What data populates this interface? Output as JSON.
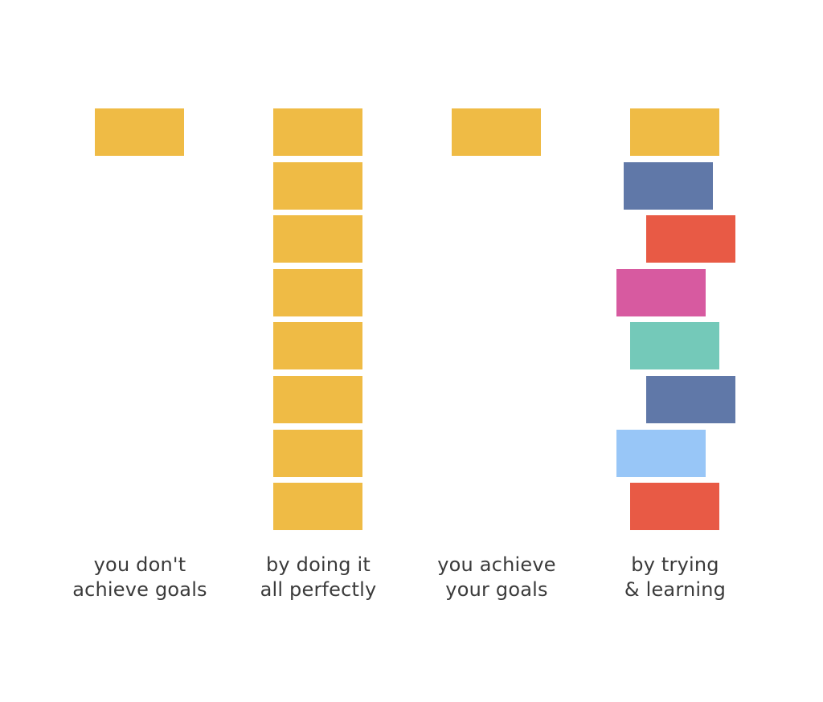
{
  "palette": {
    "yellow": "#efbb45",
    "slate_blue": "#6078a8",
    "red": "#e85a45",
    "magenta": "#d75aa0",
    "teal": "#74c9b9",
    "light_blue": "#98c6f7",
    "caption_text": "#3a3a3a",
    "background": "#ffffff"
  },
  "columns": [
    {
      "id": "col-1",
      "caption": [
        "you don't",
        "achieve goals"
      ],
      "blocks": [
        "yellow"
      ]
    },
    {
      "id": "col-2",
      "caption": [
        "by doing it",
        "all perfectly"
      ],
      "blocks": [
        "yellow",
        "yellow",
        "yellow",
        "yellow",
        "yellow",
        "yellow",
        "yellow",
        "yellow"
      ]
    },
    {
      "id": "col-3",
      "caption": [
        "you achieve",
        "your goals"
      ],
      "blocks": [
        "yellow"
      ]
    },
    {
      "id": "col-4",
      "caption": [
        "by trying",
        "& learning"
      ],
      "blocks": [
        "yellow",
        "slate_blue",
        "red",
        "magenta",
        "teal",
        "slate_blue",
        "light_blue",
        "red"
      ]
    }
  ]
}
